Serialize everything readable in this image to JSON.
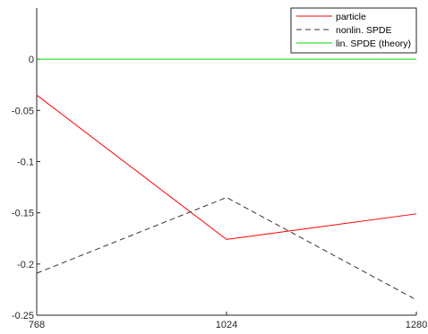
{
  "chart_data": {
    "type": "line",
    "x": [
      768,
      1024,
      1280
    ],
    "xticks": [
      "768",
      "1024",
      "1280"
    ],
    "xlim": [
      768,
      1280
    ],
    "ylim": [
      -0.25,
      0.05
    ],
    "yticks": [
      0,
      -0.05,
      -0.1,
      -0.15,
      -0.2,
      -0.25
    ],
    "ytick_labels": [
      "0",
      "-0.05",
      "-0.1",
      "-0.15",
      "-0.2",
      "-0.25"
    ],
    "grid": false,
    "legend_position": "top-right",
    "series": [
      {
        "name": "particle",
        "values": [
          -0.035,
          -0.176,
          -0.151
        ],
        "color": "#ff0000",
        "dash": "solid"
      },
      {
        "name": "nonlin. SPDE",
        "values": [
          -0.209,
          -0.135,
          -0.235
        ],
        "color": "#333333",
        "dash": "dashed"
      },
      {
        "name": "lin. SPDE (theory)",
        "values": [
          0,
          0,
          0
        ],
        "color": "#00dd00",
        "dash": "solid"
      }
    ]
  }
}
